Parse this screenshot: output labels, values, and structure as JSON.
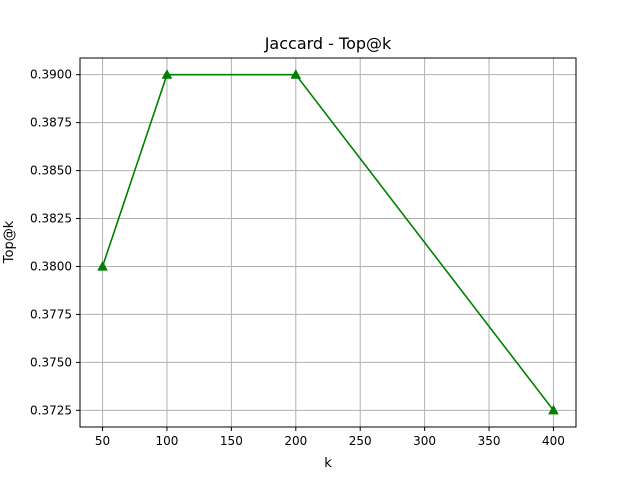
{
  "chart_data": {
    "type": "line",
    "title": "Jaccard - Top@k",
    "xlabel": "k",
    "ylabel": "Top@k",
    "x": [
      50,
      100,
      200,
      400
    ],
    "series": [
      {
        "values": [
          0.38,
          0.39,
          0.39,
          0.3725
        ],
        "color": "#008000",
        "marker": "triangle-up"
      }
    ],
    "x_ticks": [
      50,
      100,
      150,
      200,
      250,
      300,
      350,
      400
    ],
    "x_tick_labels": [
      "50",
      "100",
      "150",
      "200",
      "250",
      "300",
      "350",
      "400"
    ],
    "y_ticks": [
      0.3725,
      0.375,
      0.3775,
      0.38,
      0.3825,
      0.385,
      0.3875,
      0.39
    ],
    "y_tick_labels": [
      "0.3725",
      "0.3750",
      "0.3775",
      "0.3800",
      "0.3825",
      "0.3850",
      "0.3875",
      "0.3900"
    ],
    "xlim": [
      32.5,
      417.5
    ],
    "ylim": [
      0.37163,
      0.39087
    ],
    "grid": true,
    "grid_color": "#b0b0b0"
  }
}
